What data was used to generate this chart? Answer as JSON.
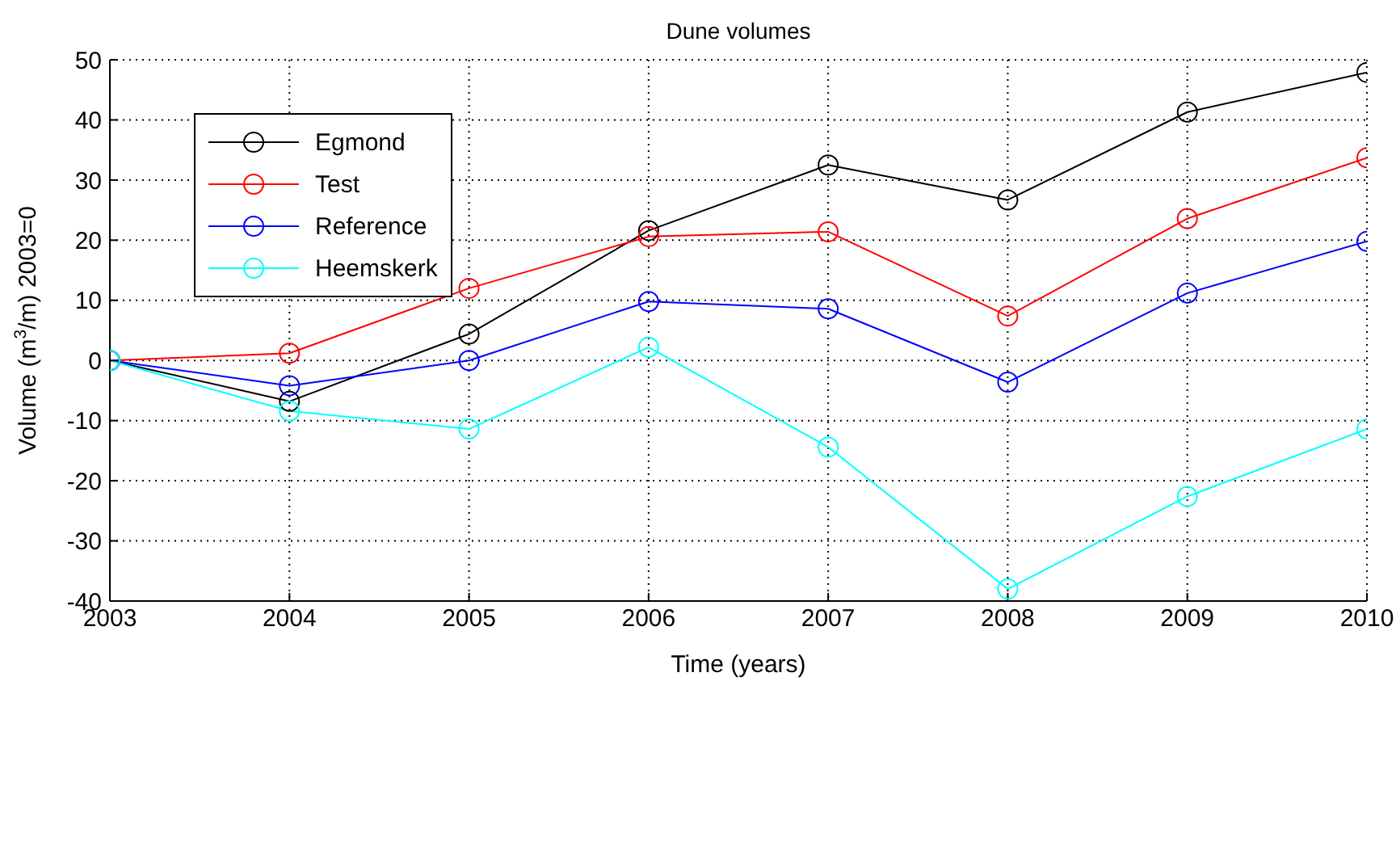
{
  "chart_data": {
    "type": "line",
    "title": "Dune volumes",
    "xlabel": "Time (years)",
    "ylabel": "Volume (m$^{3}$/m) 2003=0",
    "x": [
      2003,
      2004,
      2005,
      2006,
      2007,
      2008,
      2009,
      2010
    ],
    "series": [
      {
        "name": "Egmond",
        "color": "#000000",
        "values": [
          0,
          -6.8,
          4.4,
          21.6,
          32.5,
          26.7,
          41.3,
          47.9
        ]
      },
      {
        "name": "Test",
        "color": "#ff0000",
        "values": [
          0,
          1.2,
          12,
          20.6,
          21.4,
          7.4,
          23.6,
          33.7
        ]
      },
      {
        "name": "Reference",
        "color": "#0000ff",
        "values": [
          0,
          -4.2,
          0,
          9.8,
          8.6,
          -3.6,
          11.2,
          19.8
        ]
      },
      {
        "name": "Heemskerk",
        "color": "#00ffff",
        "values": [
          0,
          -8.4,
          -11.4,
          2.2,
          -14.4,
          -38,
          -22.6,
          -11.4
        ]
      }
    ],
    "xlim": [
      2003,
      2010
    ],
    "xticks": [
      2003,
      2004,
      2005,
      2006,
      2007,
      2008,
      2009,
      2010
    ],
    "ylim": [
      -40,
      50
    ],
    "yticks": [
      -40,
      -30,
      -20,
      -10,
      0,
      10,
      20,
      30,
      40,
      50
    ],
    "grid": true,
    "legend": "top left",
    "marker": "circle",
    "line_style": "solid"
  }
}
